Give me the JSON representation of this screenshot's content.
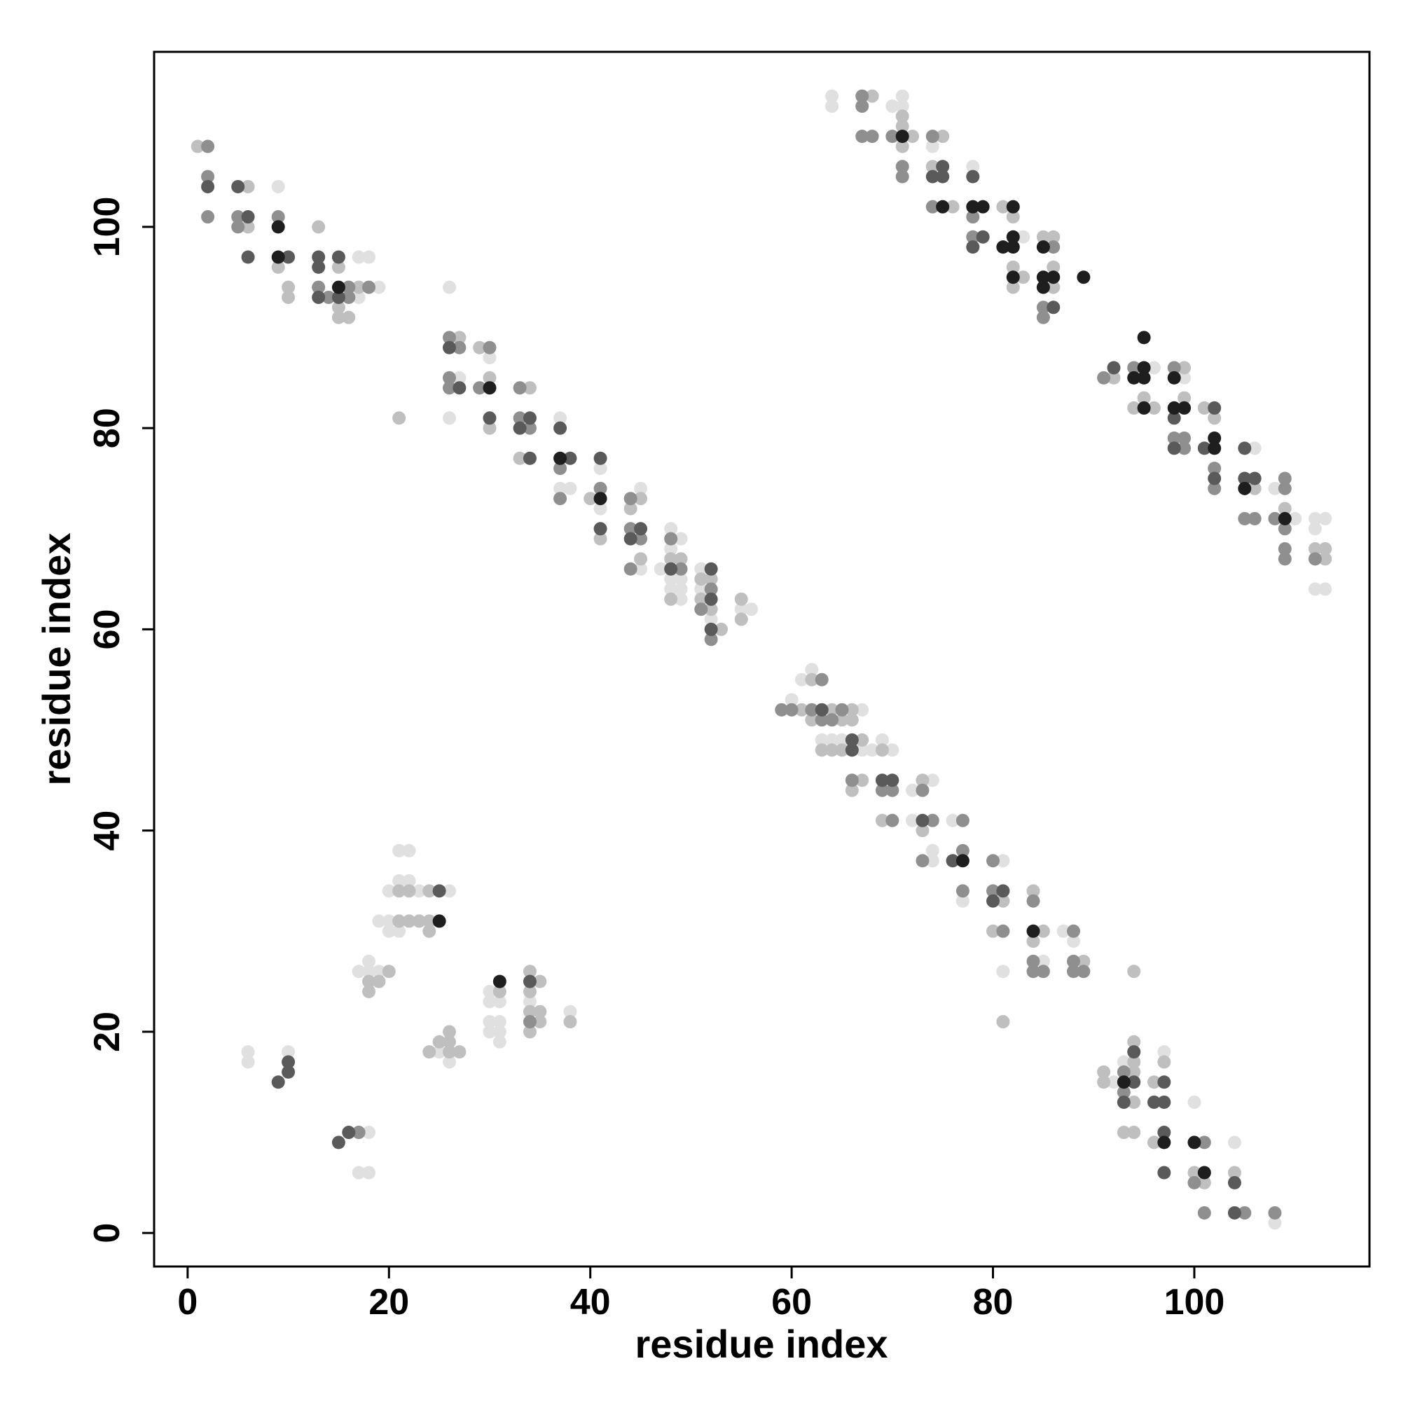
{
  "chart_data": {
    "type": "scatter",
    "x_label": "residue index",
    "y_label": "residue index",
    "xlim": [
      -3.33,
      117.4
    ],
    "ylim": [
      -3.33,
      117.4
    ],
    "xticks": [
      0,
      20,
      40,
      60,
      80,
      100
    ],
    "yticks": [
      0,
      20,
      40,
      60,
      80,
      100
    ],
    "series": [
      {
        "color": "#e0e0e0",
        "x": [
          9,
          17,
          18,
          17,
          19,
          26,
          26,
          27,
          30,
          37,
          37,
          38,
          41,
          41,
          45,
          45,
          48,
          49,
          48,
          48,
          49,
          48,
          49,
          49,
          47,
          51,
          51,
          52,
          56,
          55,
          60,
          61,
          62,
          67,
          63,
          64,
          65,
          67,
          68,
          69,
          70,
          72,
          74,
          72,
          74,
          74,
          76,
          77,
          81,
          81,
          85,
          87,
          88,
          92,
          93,
          97,
          100,
          104,
          108,
          21,
          22,
          20,
          21,
          22,
          23,
          26,
          19,
          20,
          20,
          21,
          17,
          18,
          18,
          19,
          30,
          31,
          30,
          30,
          31,
          30,
          31,
          31,
          34,
          38,
          25,
          26,
          6,
          6,
          10,
          18,
          17,
          18,
          64,
          64,
          71,
          70,
          71,
          74,
          78,
          83,
          96,
          99,
          106,
          108,
          110,
          112,
          113,
          112,
          112,
          113
        ],
        "values": [
          104,
          97,
          97,
          93,
          94,
          94,
          81,
          85,
          87,
          81,
          74,
          74,
          76,
          72,
          74,
          66,
          70,
          69,
          68,
          65,
          65,
          64,
          64,
          63,
          66,
          66,
          64,
          61,
          62,
          62,
          53,
          55,
          56,
          52,
          49,
          49,
          49,
          48,
          48,
          49,
          48,
          44,
          45,
          41,
          38,
          37,
          41,
          33,
          37,
          26,
          27,
          30,
          29,
          15,
          17,
          18,
          13,
          9,
          1,
          38,
          38,
          34,
          35,
          35,
          34,
          34,
          31,
          31,
          30,
          30,
          26,
          27,
          26,
          26,
          24,
          23,
          23,
          21,
          21,
          20,
          20,
          19,
          23,
          22,
          18,
          17,
          18,
          17,
          18,
          10,
          6,
          6,
          113,
          112,
          113,
          112,
          112,
          108,
          106,
          99,
          86,
          85,
          78,
          74,
          71,
          71,
          71,
          70,
          64,
          64
        ]
      },
      {
        "color": "#bfbfbf",
        "x": [
          1,
          6,
          6,
          9,
          10,
          10,
          13,
          15,
          17,
          15,
          15,
          16,
          21,
          27,
          29,
          30,
          30,
          34,
          33,
          40,
          44,
          45,
          41,
          45,
          48,
          49,
          48,
          51,
          52,
          51,
          52,
          53,
          55,
          55,
          62,
          61,
          62,
          64,
          66,
          65,
          66,
          63,
          64,
          65,
          67,
          69,
          67,
          66,
          73,
          69,
          73,
          81,
          80,
          81,
          84,
          85,
          84,
          89,
          94,
          91,
          91,
          94,
          94,
          94,
          94,
          93,
          94,
          96,
          97,
          96,
          100,
          101,
          104,
          21,
          22,
          24,
          21,
          22,
          23,
          24,
          24,
          20,
          18,
          19,
          18,
          31,
          34,
          35,
          34,
          34,
          35,
          35,
          34,
          38,
          26,
          25,
          26,
          24,
          26,
          27,
          68,
          71,
          71,
          72,
          71,
          75,
          74,
          76,
          81,
          82,
          82,
          83,
          82,
          85,
          86,
          86,
          86,
          92,
          94,
          95,
          96,
          99,
          99,
          101,
          102,
          106,
          109,
          112,
          113,
          113
        ],
        "values": [
          108,
          104,
          100,
          96,
          94,
          93,
          100,
          96,
          94,
          92,
          91,
          91,
          81,
          89,
          88,
          85,
          80,
          84,
          77,
          73,
          72,
          73,
          69,
          67,
          67,
          67,
          63,
          65,
          65,
          63,
          62,
          60,
          63,
          61,
          55,
          52,
          51,
          52,
          52,
          51,
          51,
          48,
          48,
          48,
          49,
          48,
          45,
          44,
          45,
          41,
          40,
          33,
          30,
          21,
          34,
          30,
          29,
          27,
          26,
          16,
          15,
          16,
          19,
          17,
          13,
          10,
          10,
          15,
          17,
          9,
          6,
          5,
          6,
          34,
          34,
          34,
          31,
          31,
          31,
          31,
          30,
          26,
          25,
          25,
          24,
          24,
          26,
          25,
          24,
          22,
          22,
          21,
          20,
          21,
          20,
          19,
          19,
          18,
          18,
          18,
          113,
          111,
          110,
          109,
          108,
          109,
          106,
          102,
          102,
          101,
          96,
          95,
          94,
          99,
          99,
          96,
          94,
          85,
          82,
          83,
          82,
          86,
          83,
          82,
          81,
          74,
          72,
          68,
          68,
          67
        ]
      },
      {
        "color": "#8f8f8f",
        "x": [
          2,
          2,
          2,
          5,
          5,
          9,
          13,
          14,
          16,
          16,
          18,
          26,
          27,
          26,
          26,
          30,
          29,
          33,
          33,
          34,
          37,
          37,
          41,
          44,
          44,
          45,
          44,
          48,
          49,
          52,
          51,
          52,
          59,
          60,
          63,
          62,
          63,
          65,
          64,
          66,
          69,
          70,
          73,
          70,
          74,
          73,
          77,
          77,
          77,
          80,
          80,
          81,
          84,
          84,
          84,
          85,
          88,
          88,
          88,
          89,
          93,
          93,
          101,
          100,
          101,
          105,
          108,
          34,
          17,
          67,
          67,
          67,
          68,
          70,
          71,
          71,
          74,
          74,
          78,
          78,
          86,
          85,
          85,
          91,
          94,
          98,
          98,
          99,
          99,
          102,
          102,
          105,
          106,
          109,
          109,
          108,
          109,
          109,
          109,
          112
        ],
        "values": [
          108,
          105,
          101,
          101,
          100,
          101,
          94,
          93,
          94,
          93,
          94,
          89,
          88,
          85,
          84,
          88,
          84,
          84,
          81,
          80,
          76,
          73,
          74,
          73,
          70,
          69,
          66,
          69,
          66,
          64,
          62,
          59,
          52,
          52,
          55,
          52,
          51,
          52,
          51,
          45,
          44,
          44,
          44,
          41,
          41,
          37,
          41,
          38,
          34,
          37,
          34,
          30,
          33,
          27,
          26,
          26,
          30,
          27,
          26,
          26,
          16,
          14,
          9,
          5,
          2,
          2,
          2,
          21,
          10,
          113,
          112,
          109,
          109,
          109,
          106,
          105,
          109,
          102,
          101,
          99,
          98,
          92,
          91,
          85,
          86,
          86,
          79,
          79,
          78,
          76,
          74,
          71,
          71,
          75,
          74,
          71,
          70,
          68,
          67,
          67
        ]
      },
      {
        "color": "#5a5a5a",
        "x": [
          2,
          5,
          6,
          6,
          10,
          13,
          13,
          15,
          13,
          15,
          26,
          27,
          30,
          34,
          33,
          34,
          37,
          38,
          41,
          41,
          45,
          44,
          48,
          52,
          52,
          52,
          63,
          66,
          66,
          69,
          70,
          73,
          76,
          81,
          80,
          94,
          94,
          93,
          97,
          96,
          97,
          97,
          97,
          104,
          104,
          25,
          34,
          10,
          9,
          10,
          15,
          16,
          75,
          74,
          75,
          78,
          79,
          78,
          86,
          92,
          98,
          98,
          102,
          101,
          102,
          105,
          105,
          106
        ],
        "values": [
          104,
          104,
          101,
          97,
          97,
          97,
          96,
          97,
          93,
          93,
          88,
          84,
          81,
          81,
          80,
          77,
          80,
          77,
          77,
          70,
          70,
          69,
          66,
          66,
          63,
          60,
          52,
          49,
          48,
          45,
          45,
          41,
          37,
          34,
          33,
          15,
          18,
          13,
          15,
          13,
          13,
          10,
          6,
          5,
          2,
          34,
          25,
          17,
          15,
          16,
          9,
          10,
          106,
          105,
          105,
          105,
          99,
          98,
          92,
          86,
          81,
          78,
          82,
          78,
          75,
          78,
          75,
          75
        ]
      },
      {
        "color": "#1e1e1e",
        "x": [
          9,
          9,
          15,
          30,
          37,
          41,
          77,
          84,
          93,
          97,
          100,
          101,
          25,
          31,
          71,
          75,
          78,
          79,
          82,
          81,
          82,
          82,
          82,
          85,
          85,
          86,
          85,
          89,
          95,
          94,
          95,
          95,
          95,
          98,
          98,
          99,
          102,
          102,
          105,
          109
        ],
        "values": [
          100,
          97,
          94,
          84,
          77,
          73,
          37,
          30,
          15,
          9,
          9,
          6,
          31,
          25,
          109,
          102,
          102,
          102,
          102,
          98,
          99,
          98,
          95,
          98,
          95,
          95,
          94,
          95,
          86,
          85,
          85,
          89,
          82,
          85,
          82,
          82,
          79,
          78,
          74,
          71
        ]
      }
    ]
  }
}
